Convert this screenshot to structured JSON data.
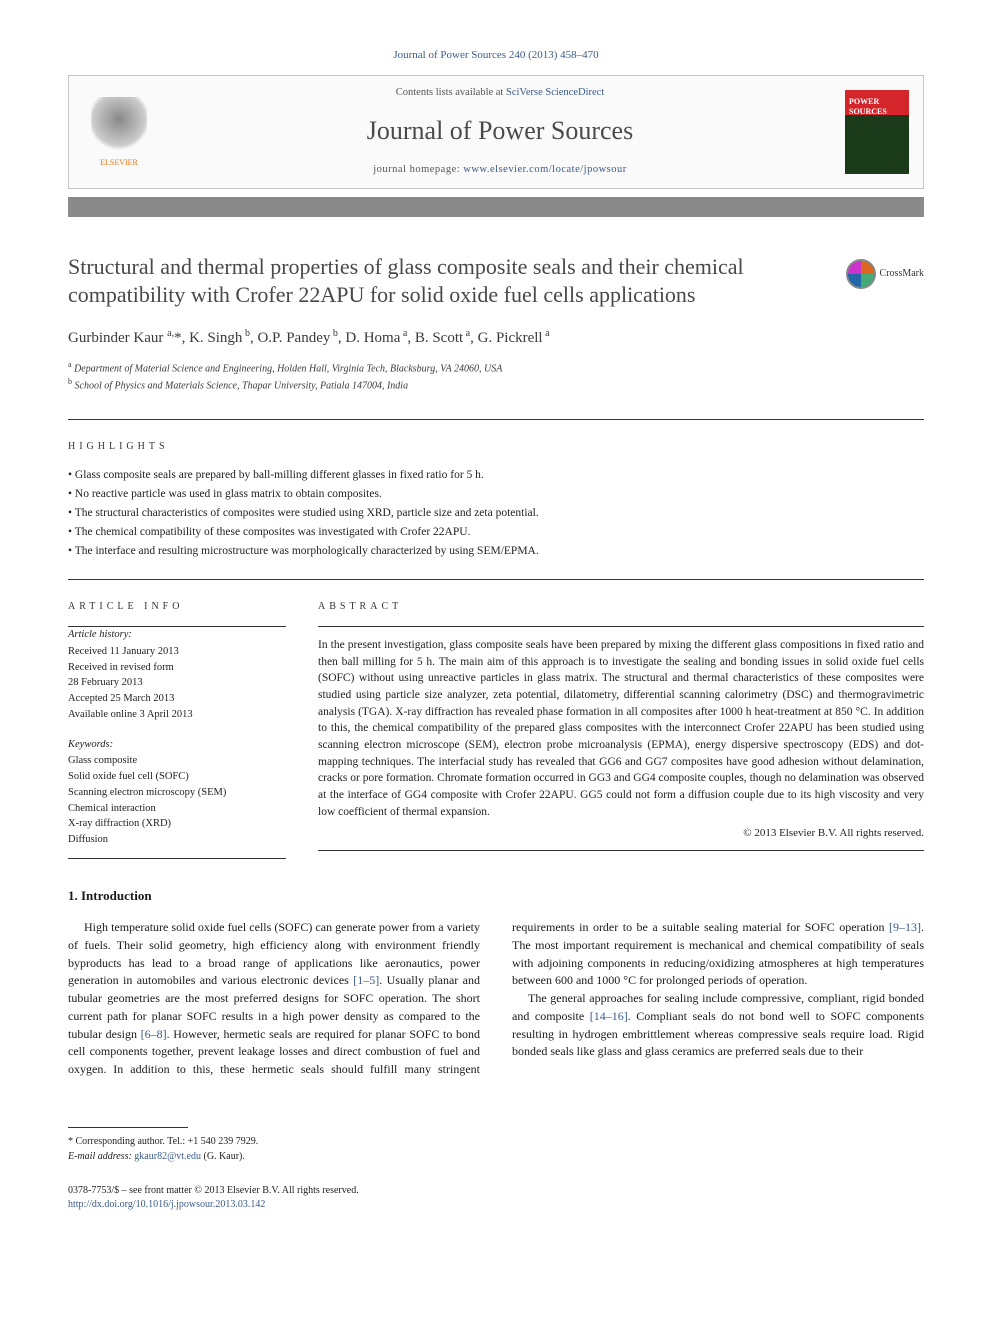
{
  "journal_ref": "Journal of Power Sources 240 (2013) 458–470",
  "header": {
    "contents_prefix": "Contents lists available at ",
    "contents_link": "SciVerse ScienceDirect",
    "journal_name": "Journal of Power Sources",
    "homepage_prefix": "journal homepage: ",
    "homepage_link": "www.elsevier.com/locate/jpowsour",
    "publisher": "ELSEVIER"
  },
  "crossmark_label": "CrossMark",
  "title": "Structural and thermal properties of glass composite seals and their chemical compatibility with Crofer 22APU for solid oxide fuel cells applications",
  "authors_html": "Gurbinder Kaur <sup>a,</sup>*, K. Singh<sup> b</sup>, O.P. Pandey<sup> b</sup>, D. Homa<sup> a</sup>, B. Scott<sup> a</sup>, G. Pickrell<sup> a</sup>",
  "affiliations": [
    {
      "sup": "a",
      "text": "Department of Material Science and Engineering, Holden Hall, Virginia Tech, Blacksburg, VA 24060, USA"
    },
    {
      "sup": "b",
      "text": "School of Physics and Materials Science, Thapar University, Patiala 147004, India"
    }
  ],
  "labels": {
    "highlights": "HIGHLIGHTS",
    "article_info": "ARTICLE INFO",
    "abstract": "ABSTRACT",
    "history": "Article history:",
    "keywords": "Keywords:"
  },
  "highlights": [
    "Glass composite seals are prepared by ball-milling different glasses in fixed ratio for 5 h.",
    "No reactive particle was used in glass matrix to obtain composites.",
    "The structural characteristics of composites were studied using XRD, particle size and zeta potential.",
    "The chemical compatibility of these composites was investigated with Crofer 22APU.",
    "The interface and resulting microstructure was morphologically characterized by using SEM/EPMA."
  ],
  "history": [
    "Received 11 January 2013",
    "Received in revised form",
    "28 February 2013",
    "Accepted 25 March 2013",
    "Available online 3 April 2013"
  ],
  "keywords": [
    "Glass composite",
    "Solid oxide fuel cell (SOFC)",
    "Scanning electron microscopy (SEM)",
    "Chemical interaction",
    "X-ray diffraction (XRD)",
    "Diffusion"
  ],
  "abstract": "In the present investigation, glass composite seals have been prepared by mixing the different glass compositions in fixed ratio and then ball milling for 5 h. The main aim of this approach is to investigate the sealing and bonding issues in solid oxide fuel cells (SOFC) without using unreactive particles in glass matrix. The structural and thermal characteristics of these composites were studied using particle size analyzer, zeta potential, dilatometry, differential scanning calorimetry (DSC) and thermogravimetric analysis (TGA). X-ray diffraction has revealed phase formation in all composites after 1000 h heat-treatment at 850 °C. In addition to this, the chemical compatibility of the prepared glass composites with the interconnect Crofer 22APU has been studied using scanning electron microscope (SEM), electron probe microanalysis (EPMA), energy dispersive spectroscopy (EDS) and dot-mapping techniques. The interfacial study has revealed that GG6 and GG7 composites have good adhesion without delamination, cracks or pore formation. Chromate formation occurred in GG3 and GG4 composite couples, though no delamination was observed at the interface of GG4 composite with Crofer 22APU. GG5 could not form a diffusion couple due to its high viscosity and very low coefficient of thermal expansion.",
  "copyright": "© 2013 Elsevier B.V. All rights reserved.",
  "intro_heading": "1.  Introduction",
  "intro_p1_a": "High temperature solid oxide fuel cells (SOFC) can generate power from a variety of fuels. Their solid geometry, high efficiency along with environment friendly byproducts has lead to a broad range of applications like aeronautics, power generation in automobiles and various electronic devices ",
  "intro_ref1": "[1–5]",
  "intro_p1_b": ". Usually planar and tubular geometries are the most preferred designs for SOFC operation. The short current path for planar SOFC results in a high power density as compared to the tubular design ",
  "intro_ref2": "[6–8]",
  "intro_p1_c": ". However, hermetic seals are required for planar SOFC to bond cell components together, prevent leakage losses and direct combustion of fuel and oxygen. In addition to this, these hermetic seals should fulfill many stringent requirements in order to be a suitable sealing material for SOFC operation ",
  "intro_ref3": "[9–13]",
  "intro_p1_d": ". The most important requirement is mechanical and chemical compatibility of seals with adjoining components in reducing/oxidizing atmospheres at high temperatures between 600 and 1000 °C for prolonged periods of operation.",
  "intro_p2_a": "The general approaches for sealing include compressive, compliant, rigid bonded and composite ",
  "intro_ref4": "[14–16]",
  "intro_p2_b": ". Compliant seals do not bond well to SOFC components resulting in hydrogen embrittlement whereas compressive seals require load. Rigid bonded seals like glass and glass ceramics are preferred seals due to their",
  "footer": {
    "corresponding": "* Corresponding author. Tel.: +1 540 239 7929.",
    "email_label": "E-mail address: ",
    "email": "gkaur82@vt.edu",
    "email_suffix": " (G. Kaur).",
    "front_matter": "0378-7753/$ – see front matter © 2013 Elsevier B.V. All rights reserved.",
    "doi_label": "",
    "doi": "http://dx.doi.org/10.1016/j.jpowsour.2013.03.142"
  },
  "colors": {
    "link": "#3a5a8a",
    "title_grey": "#484848",
    "bar_grey": "#8a8a8a",
    "elsevier_orange": "#e67817"
  }
}
